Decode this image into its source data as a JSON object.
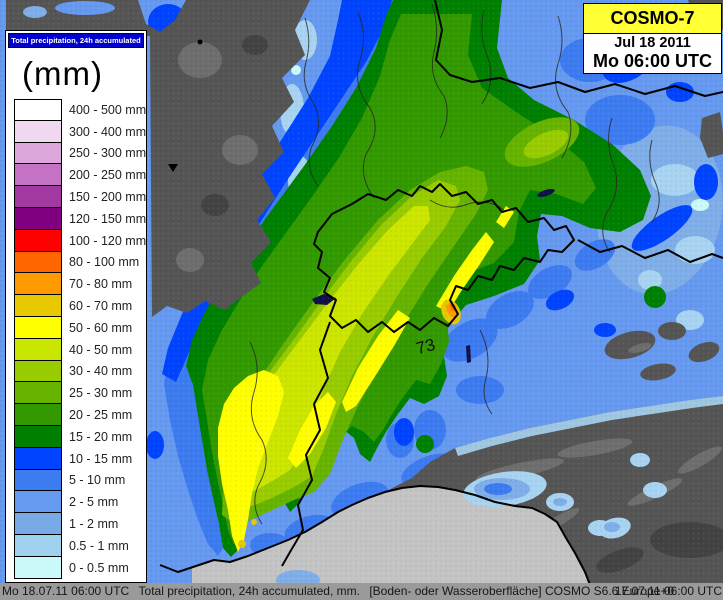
{
  "legend": {
    "title": "Total precipitation, 24h accumulated",
    "unit": "(mm)",
    "entries": [
      {
        "label": "400 - 500 mm",
        "color": "#FFFFFF"
      },
      {
        "label": "300 - 400 mm",
        "color": "#F0D8F0"
      },
      {
        "label": "250 - 300 mm",
        "color": "#DCA8DC"
      },
      {
        "label": "200 - 250 mm",
        "color": "#C473C4"
      },
      {
        "label": "150 - 200 mm",
        "color": "#A239A2"
      },
      {
        "label": "120 - 150 mm",
        "color": "#800080"
      },
      {
        "label": "100 - 120 mm",
        "color": "#FF0000"
      },
      {
        "label": "80 - 100 mm",
        "color": "#FF6600"
      },
      {
        "label": "70 - 80 mm",
        "color": "#FF9900"
      },
      {
        "label": "60 - 70 mm",
        "color": "#E8C800"
      },
      {
        "label": "50 - 60 mm",
        "color": "#FFFF00"
      },
      {
        "label": "40 - 50 mm",
        "color": "#C8E600"
      },
      {
        "label": "30 - 40 mm",
        "color": "#99CC00"
      },
      {
        "label": "25 - 30 mm",
        "color": "#66B400"
      },
      {
        "label": "20 - 25 mm",
        "color": "#339900"
      },
      {
        "label": "15 - 20 mm",
        "color": "#008000"
      },
      {
        "label": "10 - 15 mm",
        "color": "#0044FF"
      },
      {
        "label": "5 - 10 mm",
        "color": "#3D7BF0"
      },
      {
        "label": "2 - 5 mm",
        "color": "#6699F0"
      },
      {
        "label": "1 - 2 mm",
        "color": "#78AAE6"
      },
      {
        "label": "0.5 - 1 mm",
        "color": "#A0D2F0"
      },
      {
        "label": "0 - 0.5 mm",
        "color": "#CCFAFA"
      }
    ]
  },
  "header_box": {
    "model": "COSMO-7",
    "date": "Jul 18 2011",
    "valid_time": "Mo 06:00 UTC"
  },
  "map": {
    "max_value_label": "73"
  },
  "footer": {
    "valid_datetime": "Mo 18.07.11 06:00 UTC",
    "description": "Total precipitation, 24h accumulated, mm.",
    "source": "[Boden- oder Wasseroberfläche] COSMO  S6.6  Europe+0",
    "run_datetime": "17.07.11 06:00 UTC"
  },
  "palette": {
    "blue-pale": "#CCFAFA",
    "blue-lighter": "#A8D4F2",
    "blue-light": "#7FAEE8",
    "blue-base": "#6699F0",
    "blue-mid": "#3D7BF0",
    "blue-dark": "#0044FF",
    "green-dark": "#008000",
    "green-mid": "#339900",
    "green-light": "#66B400",
    "green-yellow": "#99CC00",
    "yellow-green": "#CCE600",
    "yellow": "#FFFF00",
    "orange-light": "#E8C800",
    "orange": "#FF9900",
    "orange-deep": "#FF6600",
    "gray-domain": "#555555",
    "gray-relief-light": "#6E6E6E",
    "gray-relief-dark": "#434343",
    "sea-gray": "#C4C4C4",
    "line-border": "#000000",
    "line-river": "#262626",
    "lake": "#10104A",
    "header-yellow": "#FFFF33",
    "legend-bar-blue": "#0000CC",
    "footer-gray": "#9A9A9A"
  }
}
